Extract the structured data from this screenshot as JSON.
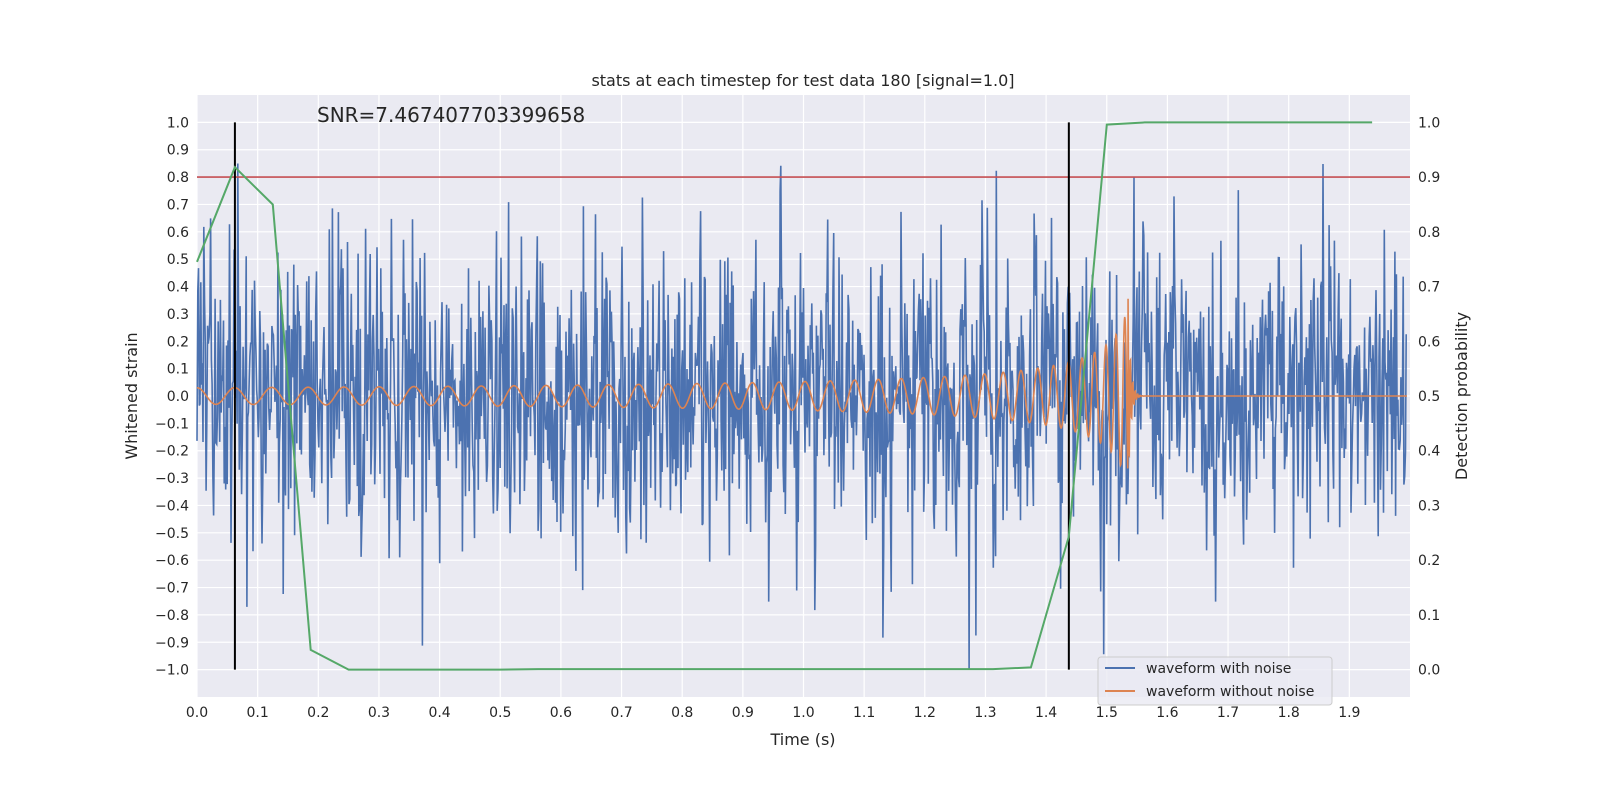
{
  "chart_data": {
    "type": "line",
    "title": "stats at each timestep for test data 180 [signal=1.0]",
    "annotation": "SNR=7.467407703399658",
    "xlabel": "Time (s)",
    "ylabel": "Whitened strain",
    "y2label": "Detection probability",
    "xlim": [
      0,
      2.0
    ],
    "ylim": [
      -1.1,
      1.1
    ],
    "y2lim": [
      -0.05,
      1.05
    ],
    "grid": true,
    "legend_position": "lower-right",
    "x_ticks": [
      "0.0",
      "0.1",
      "0.2",
      "0.3",
      "0.4",
      "0.5",
      "0.6",
      "0.7",
      "0.8",
      "0.9",
      "1.0",
      "1.1",
      "1.2",
      "1.3",
      "1.4",
      "1.5",
      "1.6",
      "1.7",
      "1.8",
      "1.9"
    ],
    "y_ticks": [
      "1.0",
      "0.9",
      "0.8",
      "0.7",
      "0.6",
      "0.5",
      "0.4",
      "0.3",
      "0.2",
      "0.1",
      "0.0",
      "−0.1",
      "−0.2",
      "−0.3",
      "−0.4",
      "−0.5",
      "−0.6",
      "−0.7",
      "−0.8",
      "−0.9",
      "−1.0"
    ],
    "y2_ticks": [
      "1.0",
      "0.9",
      "0.8",
      "0.7",
      "0.6",
      "0.5",
      "0.4",
      "0.3",
      "0.2",
      "0.1",
      "0.0"
    ],
    "series": [
      {
        "name": "waveform with noise",
        "color": "#4c72b0",
        "axis": "left",
        "kind": "gaussian-noise",
        "std": 0.27,
        "samples": 1600,
        "seed": 180
      },
      {
        "name": "waveform without noise",
        "color": "#dd8452",
        "axis": "left",
        "kind": "chirp",
        "f_start_hz": 16,
        "f_merge_hz": 250,
        "t_merge": 1.535,
        "amp_start": 0.03,
        "amp_merge": 0.38
      },
      {
        "name": "detection probability",
        "color": "#55a868",
        "axis": "right",
        "x": [
          0,
          0.0625,
          0.125,
          0.1875,
          0.25,
          0.3125,
          0.375,
          0.4375,
          0.5,
          0.5625,
          0.625,
          0.6875,
          0.75,
          0.8125,
          0.875,
          0.9375,
          1.0,
          1.0625,
          1.125,
          1.1875,
          1.25,
          1.3125,
          1.375,
          1.4375,
          1.5,
          1.5625,
          1.625,
          1.6875,
          1.75,
          1.8125,
          1.875,
          1.9375
        ],
        "y": [
          0.745,
          0.918,
          0.85,
          0.036,
          0.0,
          0.0,
          0.0,
          0.0,
          0.0,
          0.001,
          0.001,
          0.001,
          0.001,
          0.001,
          0.001,
          0.001,
          0.001,
          0.001,
          0.001,
          0.001,
          0.001,
          0.001,
          0.004,
          0.243,
          0.996,
          1.0,
          1.0,
          1.0,
          1.0,
          1.0,
          1.0,
          1.0
        ]
      }
    ],
    "threshold": {
      "value": 0.8,
      "axis": "left",
      "color": "#c44e52"
    },
    "vlines": {
      "x": [
        0.0625,
        1.4375
      ],
      "ymin": -1.0,
      "ymax": 1.0,
      "color": "#000000"
    }
  }
}
